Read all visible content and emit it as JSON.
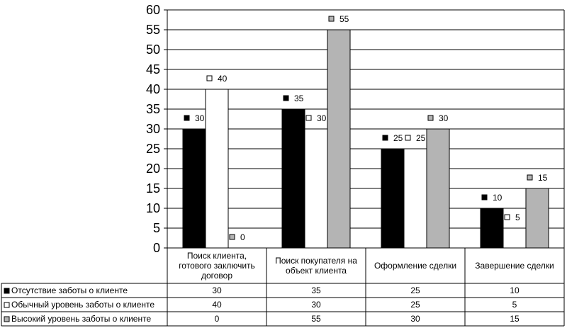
{
  "chart_data": {
    "type": "bar",
    "title": "",
    "xlabel": "",
    "ylabel": "",
    "ylim": [
      0,
      60
    ],
    "ystep": 5,
    "yticks": [
      "0",
      "5",
      "10",
      "15",
      "20",
      "25",
      "30",
      "35",
      "40",
      "45",
      "50",
      "55",
      "60"
    ],
    "grid": true,
    "legend": "data-table-left",
    "categories": [
      [
        "Поиск клиента,",
        "готового заключить",
        "договор"
      ],
      [
        "Поиск покупателя на",
        "объект клиента"
      ],
      [
        "Оформление сделки"
      ],
      [
        "Завершение сделки"
      ]
    ],
    "series": [
      {
        "name": "Отсутствие заботы о клиенте",
        "color": "#000000",
        "values": [
          30,
          35,
          25,
          10
        ]
      },
      {
        "name": "Обычный уровень заботы о клиенте",
        "color": "#ffffff",
        "values": [
          40,
          30,
          25,
          5
        ]
      },
      {
        "name": "Высокий уровень заботы о клиенте",
        "color": "#b4b4b4",
        "values": [
          0,
          55,
          30,
          15
        ]
      }
    ]
  }
}
